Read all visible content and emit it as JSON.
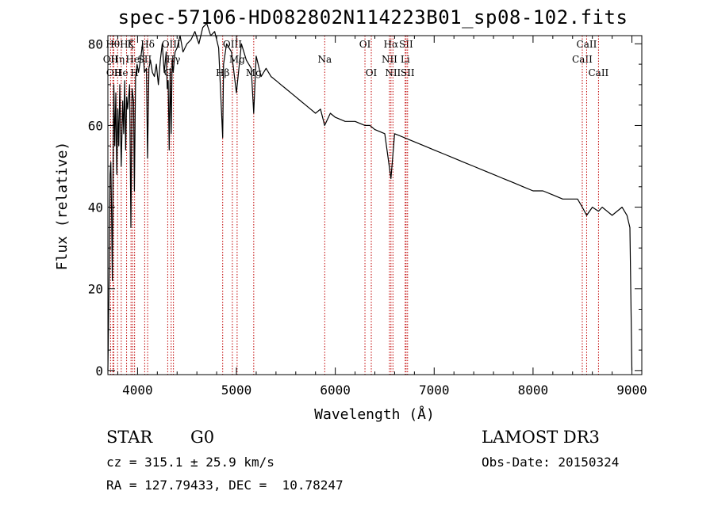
{
  "title": "spec-57106-HD082802N114223B01_sp08-102.fits",
  "info": {
    "object_class": "STAR",
    "subclass": "G0",
    "survey": "LAMOST DR3",
    "redshift_line": "cz = 315.1 ± 25.9 km/s",
    "obs_date": "Obs-Date: 20150324",
    "coords": "RA = 127.79433, DEC =  10.78247"
  },
  "chart_data": {
    "type": "line",
    "title": "spec-57106-HD082802N114223B01_sp08-102.fits",
    "xlabel": "Wavelength (Å)",
    "ylabel": "Flux (relative)",
    "xlim": [
      3700,
      9100
    ],
    "ylim": [
      -1,
      82
    ],
    "xticks": [
      4000,
      5000,
      6000,
      7000,
      8000,
      9000
    ],
    "yticks": [
      0,
      20,
      40,
      60,
      80
    ],
    "grid": false,
    "series": [
      {
        "name": "flux",
        "x": [
          3700,
          3712,
          3722,
          3730,
          3738,
          3745,
          3752,
          3760,
          3770,
          3780,
          3790,
          3800,
          3810,
          3820,
          3835,
          3850,
          3860,
          3870,
          3880,
          3890,
          3900,
          3920,
          3933,
          3945,
          3960,
          3968,
          3980,
          3995,
          4010,
          4030,
          4050,
          4070,
          4090,
          4101,
          4115,
          4130,
          4150,
          4170,
          4190,
          4210,
          4230,
          4250,
          4270,
          4290,
          4300,
          4310,
          4320,
          4330,
          4340,
          4350,
          4360,
          4380,
          4400,
          4430,
          4460,
          4500,
          4540,
          4580,
          4620,
          4660,
          4700,
          4740,
          4780,
          4820,
          4861,
          4870,
          4900,
          4950,
          5000,
          5050,
          5100,
          5150,
          5175,
          5200,
          5250,
          5300,
          5350,
          5400,
          5450,
          5500,
          5550,
          5600,
          5650,
          5700,
          5750,
          5800,
          5850,
          5892,
          5950,
          6000,
          6100,
          6200,
          6300,
          6350,
          6400,
          6500,
          6563,
          6600,
          6700,
          6800,
          6900,
          7000,
          7100,
          7200,
          7300,
          7400,
          7500,
          7600,
          7700,
          7800,
          7900,
          8000,
          8100,
          8200,
          8300,
          8400,
          8450,
          8498,
          8542,
          8600,
          8662,
          8700,
          8800,
          8900,
          8950,
          8980,
          9000
        ],
        "values": [
          0,
          22,
          48,
          51,
          38,
          22,
          48,
          70,
          55,
          68,
          48,
          64,
          55,
          70,
          50,
          66,
          58,
          71,
          54,
          67,
          64,
          70,
          35,
          69,
          66,
          44,
          72,
          75,
          73,
          76,
          80,
          73,
          74,
          52,
          74,
          76,
          73,
          72,
          75,
          70,
          76,
          80,
          73,
          78,
          69,
          71,
          54,
          74,
          58,
          76,
          73,
          78,
          79,
          82,
          78,
          80,
          81,
          83,
          80,
          84,
          85,
          82,
          83,
          79,
          57,
          75,
          80,
          78,
          68,
          80,
          76,
          74,
          63,
          77,
          72,
          74,
          72,
          71,
          70,
          69,
          68,
          67,
          66,
          65,
          64,
          63,
          64,
          60,
          63,
          62,
          61,
          61,
          60,
          60,
          59,
          58,
          47,
          58,
          57,
          56,
          55,
          54,
          53,
          52,
          51,
          50,
          49,
          48,
          47,
          46,
          45,
          44,
          44,
          43,
          42,
          42,
          42,
          40,
          38,
          40,
          39,
          40,
          38,
          40,
          38,
          35,
          0
        ]
      }
    ],
    "lines": [
      {
        "name": "OII",
        "x": 3727,
        "row": 1
      },
      {
        "name": "Hθ",
        "x": 3750,
        "row": 0
      },
      {
        "name": "OII",
        "x": 3760,
        "row": 2
      },
      {
        "name": "Hη",
        "x": 3798,
        "row": 1
      },
      {
        "name": "He",
        "x": 3835,
        "row": 2
      },
      {
        "name": "Hζ",
        "x": 3889,
        "row": 0
      },
      {
        "name": "K",
        "x": 3934,
        "row": 0
      },
      {
        "name": "He",
        "x": 3950,
        "row": 1
      },
      {
        "name": "H",
        "x": 3970,
        "row": 2
      },
      {
        "name": "SII",
        "x": 4072,
        "row": 1
      },
      {
        "name": "Hδ",
        "x": 4102,
        "row": 0
      },
      {
        "name": "G",
        "x": 4305,
        "row": 2
      },
      {
        "name": "OIII",
        "x": 4340,
        "row": 0
      },
      {
        "name": "Hγ",
        "x": 4363,
        "row": 1
      },
      {
        "name": "Hβ",
        "x": 4861,
        "row": 2
      },
      {
        "name": "OIII",
        "x": 4959,
        "row": 0
      },
      {
        "name": "Mg",
        "x": 5007,
        "row": 1
      },
      {
        "name": "Mg",
        "x": 5175,
        "row": 2
      },
      {
        "name": "Na",
        "x": 5893,
        "row": 1
      },
      {
        "name": "OI",
        "x": 6300,
        "row": 0
      },
      {
        "name": "OI",
        "x": 6364,
        "row": 2
      },
      {
        "name": "NII",
        "x": 6548,
        "row": 1
      },
      {
        "name": "Hα",
        "x": 6563,
        "row": 0
      },
      {
        "name": "NII",
        "x": 6583,
        "row": 2
      },
      {
        "name": "SII",
        "x": 6716,
        "row": 0
      },
      {
        "name": "Li",
        "x": 6707,
        "row": 1
      },
      {
        "name": "SII",
        "x": 6731,
        "row": 2
      },
      {
        "name": "CaII",
        "x": 8498,
        "row": 1
      },
      {
        "name": "CaII",
        "x": 8542,
        "row": 0
      },
      {
        "name": "CaII",
        "x": 8662,
        "row": 2
      }
    ]
  }
}
